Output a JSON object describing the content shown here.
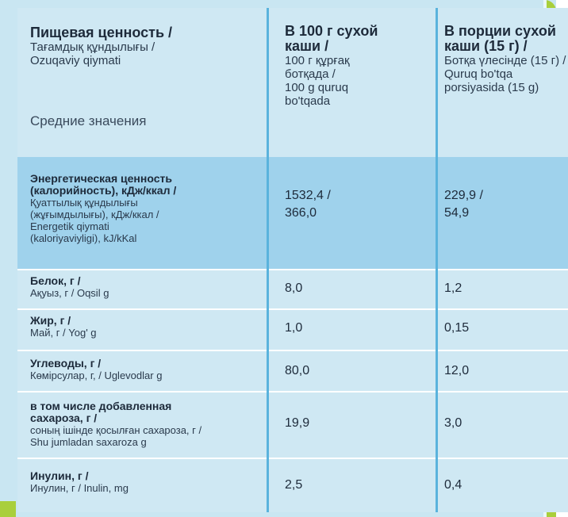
{
  "header": {
    "col1_main": "Пищевая ценность /",
    "col1_sub1": "Тағамдық құндылығы /",
    "col1_sub2": "Ozuqaviy qiymati",
    "col1_avg": "Средние значения",
    "col2_main1": "В 100 г сухой",
    "col2_main2": "каши /",
    "col2_sub1": "100 г құрғақ",
    "col2_sub2": "ботқада /",
    "col2_sub3": "100 g quruq",
    "col2_sub4": "bo'tqada",
    "col3_main1": "В  порции сухой",
    "col3_main2": "каши  (15 г) /",
    "col3_sub1": "Ботқа үлесінде (15 г) /",
    "col3_sub2": "Quruq bo'tqa",
    "col3_sub3": "porsiyasida (15 g)"
  },
  "rows": [
    {
      "main1": "Энергетическая ценность",
      "main2": "(калорийность), кДж/ккал /",
      "sub1": "Қуаттылық құндылығы",
      "sub2": "(жұғымдылығы), кДж/ккал /",
      "sub3": "Energetik qiymati",
      "sub4": "(kaloriyaviyligi), kJ/kKal",
      "v100_1": "1532,4 /",
      "v100_2": "366,0",
      "vpor_1": "229,9 /",
      "vpor_2": "54,9"
    },
    {
      "main1": "Белок, г /",
      "sub1": "Ақуыз, г / Oqsil g",
      "v100": "8,0",
      "vpor": "1,2"
    },
    {
      "main1": "Жир, г /",
      "sub1": "Май, г / Yog' g",
      "v100": "1,0",
      "vpor": "0,15"
    },
    {
      "main1": "Углеводы, г /",
      "sub1": "Көмірсулар, г, / Uglevodlar g",
      "v100": "80,0",
      "vpor": "12,0"
    },
    {
      "main1": "в том числе добавленная",
      "main2": "сахароза, г /",
      "sub1": "соның ішінде қосылған  сахароза, г /",
      "sub2": "Shu jumladan saxaroza g",
      "v100": "19,9",
      "vpor": "3,0"
    },
    {
      "main1": "Инулин, г /",
      "sub1": "Инулин, г / Inulin, mg",
      "v100": "2,5",
      "vpor": "0,4"
    }
  ]
}
